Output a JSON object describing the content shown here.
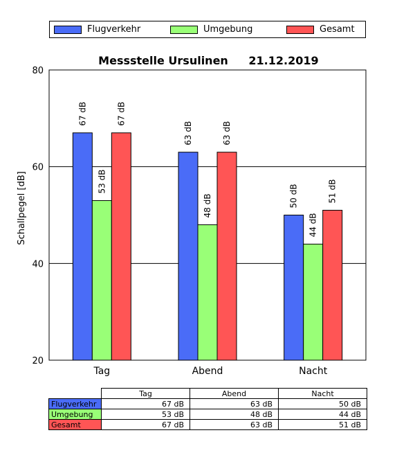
{
  "legend": [
    {
      "name": "Flugverkehr",
      "color": "#4a6cf7"
    },
    {
      "name": "Umgebung",
      "color": "#99ff77"
    },
    {
      "name": "Gesamt",
      "color": "#ff5555"
    }
  ],
  "chart_data": {
    "type": "bar",
    "title": "Messstelle Ursulinen",
    "date": "21.12.2019",
    "ylabel": "Schallpegel [dB]",
    "xlabel": "",
    "ylim": [
      20,
      80
    ],
    "yticks": [
      20,
      40,
      60,
      80
    ],
    "grid": true,
    "legend_position": "top",
    "categories": [
      "Tag",
      "Abend",
      "Nacht"
    ],
    "value_suffix": " dB",
    "series": [
      {
        "name": "Flugverkehr",
        "color": "#4a6cf7",
        "values": [
          67,
          63,
          50
        ]
      },
      {
        "name": "Umgebung",
        "color": "#99ff77",
        "values": [
          53,
          48,
          44
        ]
      },
      {
        "name": "Gesamt",
        "color": "#ff5555",
        "values": [
          67,
          63,
          51
        ]
      }
    ]
  },
  "table": {
    "columns": [
      "Tag",
      "Abend",
      "Nacht"
    ],
    "rows": [
      {
        "label": "Flugverkehr",
        "color": "#4a6cf7",
        "cells": [
          "67 dB",
          "63 dB",
          "50 dB"
        ]
      },
      {
        "label": "Umgebung",
        "color": "#99ff77",
        "cells": [
          "53 dB",
          "48 dB",
          "44 dB"
        ]
      },
      {
        "label": "Gesamt",
        "color": "#ff5555",
        "cells": [
          "67 dB",
          "63 dB",
          "51 dB"
        ]
      }
    ]
  }
}
